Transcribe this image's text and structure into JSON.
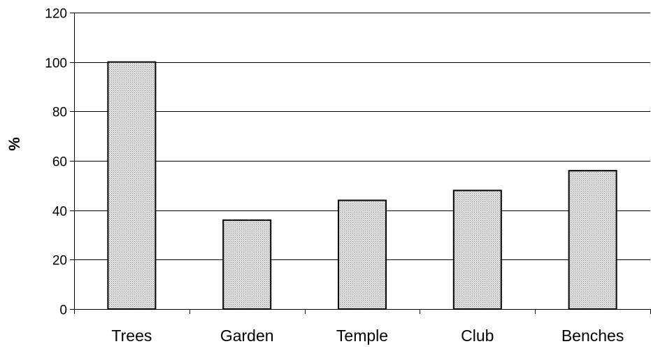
{
  "chart_data": {
    "type": "bar",
    "title": "",
    "xlabel": "",
    "ylabel": "%",
    "categories": [
      "Trees",
      "Garden",
      "Temple",
      "Club",
      "Benches"
    ],
    "values": [
      100,
      36,
      44,
      48,
      56
    ],
    "ylim": [
      0,
      120
    ],
    "yticks": [
      "0",
      "20",
      "40",
      "60",
      "80",
      "100",
      "120"
    ],
    "grid": true,
    "legend": "none",
    "bar_fill": "#d8d8d8",
    "bar_stroke": "#000000",
    "grid_color": "#000000"
  }
}
